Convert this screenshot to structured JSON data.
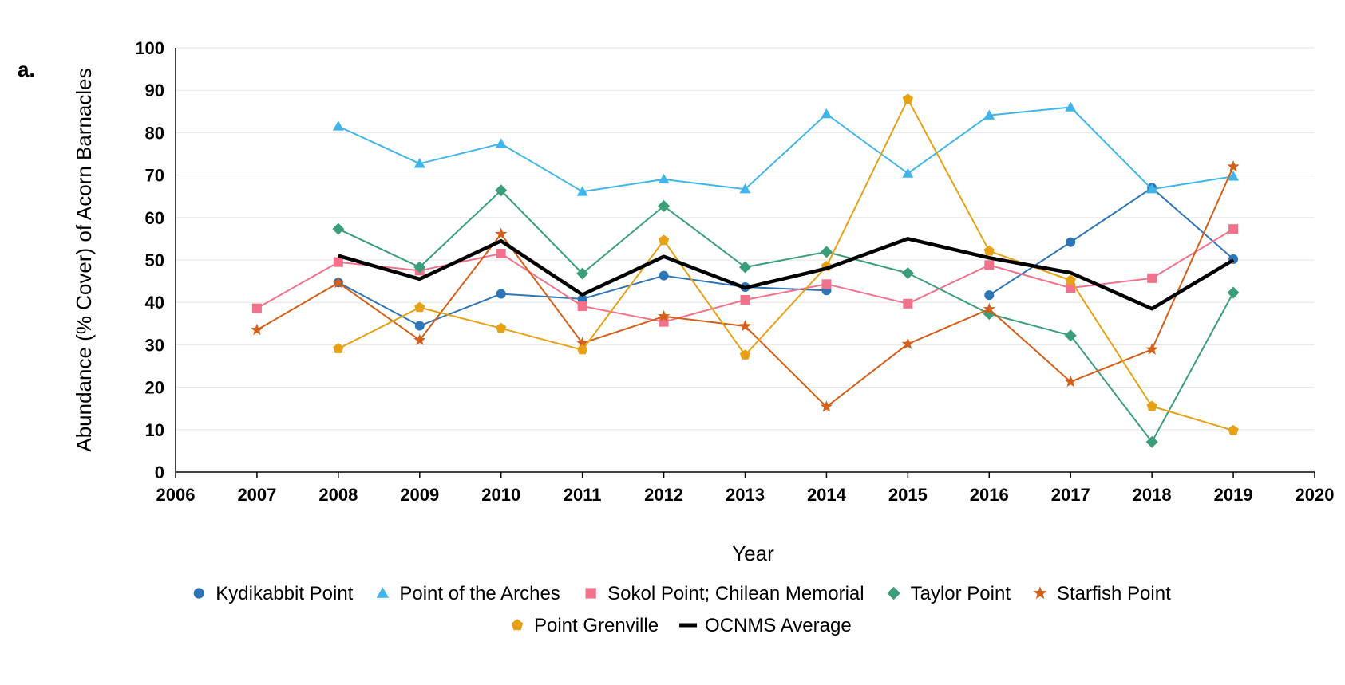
{
  "panel_label": "a.",
  "chart_data": {
    "type": "line",
    "xlabel": "Year",
    "ylabel": "Abundance (% Cover) of Acorn Barnacles",
    "xlim": [
      2006,
      2020
    ],
    "ylim": [
      0,
      100
    ],
    "x_ticks": [
      2006,
      2007,
      2008,
      2009,
      2010,
      2011,
      2012,
      2013,
      2014,
      2015,
      2016,
      2017,
      2018,
      2019,
      2020
    ],
    "y_ticks": [
      0,
      10,
      20,
      30,
      40,
      50,
      60,
      70,
      80,
      90,
      100
    ],
    "grid": "horizontal",
    "legend_position": "bottom",
    "series": [
      {
        "name": "Kydikabbit Point",
        "color": "#2e75b6",
        "marker": "circle",
        "line_width": "thin",
        "points": [
          [
            2008,
            44.7
          ],
          [
            2009,
            34.5
          ],
          [
            2010,
            42
          ],
          [
            2011,
            40.8
          ],
          [
            2012,
            46.3
          ],
          [
            2013,
            43.6
          ],
          [
            2014,
            42.8
          ],
          [
            2015,
            null
          ],
          [
            2016,
            41.7
          ],
          [
            2017,
            54.2
          ],
          [
            2018,
            67
          ],
          [
            2019,
            50.2
          ]
        ]
      },
      {
        "name": "Point of the Arches",
        "color": "#3fb5ea",
        "marker": "triangle",
        "line_width": "thin",
        "points": [
          [
            2008,
            81.5
          ],
          [
            2009,
            72.7
          ],
          [
            2010,
            77.4
          ],
          [
            2011,
            66.1
          ],
          [
            2012,
            69
          ],
          [
            2013,
            66.7
          ],
          [
            2014,
            84.4
          ],
          [
            2015,
            70.4
          ],
          [
            2016,
            84.1
          ],
          [
            2017,
            86
          ],
          [
            2018,
            66.7
          ],
          [
            2019,
            69.7
          ]
        ]
      },
      {
        "name": "Sokol Point; Chilean Memorial",
        "color": "#f2728c",
        "marker": "square",
        "line_width": "thin",
        "points": [
          [
            2007,
            38.6
          ],
          [
            2008,
            49.5
          ],
          [
            2009,
            47.5
          ],
          [
            2010,
            51.5
          ],
          [
            2011,
            39.1
          ],
          [
            2012,
            35.4
          ],
          [
            2013,
            40.6
          ],
          [
            2014,
            44.3
          ],
          [
            2015,
            39.7
          ],
          [
            2016,
            48.8
          ],
          [
            2017,
            43.4
          ],
          [
            2018,
            45.7
          ],
          [
            2019,
            57.3
          ]
        ]
      },
      {
        "name": "Taylor Point",
        "color": "#3a9e78",
        "marker": "diamond",
        "line_width": "thin",
        "points": [
          [
            2008,
            57.3
          ],
          [
            2009,
            48.3
          ],
          [
            2010,
            66.4
          ],
          [
            2011,
            46.8
          ],
          [
            2012,
            62.7
          ],
          [
            2013,
            48.3
          ],
          [
            2014,
            51.9
          ],
          [
            2015,
            46.9
          ],
          [
            2016,
            37.3
          ],
          [
            2017,
            32.2
          ],
          [
            2018,
            7.1
          ],
          [
            2019,
            42.3
          ]
        ]
      },
      {
        "name": "Starfish Point",
        "color": "#d25f1a",
        "marker": "star",
        "line_width": "thin",
        "points": [
          [
            2007,
            33.5
          ],
          [
            2008,
            44.6
          ],
          [
            2009,
            31.1
          ],
          [
            2010,
            56.1
          ],
          [
            2011,
            30.4
          ],
          [
            2012,
            36.7
          ],
          [
            2013,
            34.4
          ],
          [
            2014,
            15.4
          ],
          [
            2015,
            30.2
          ],
          [
            2016,
            38.4
          ],
          [
            2017,
            21.3
          ],
          [
            2018,
            28.9
          ],
          [
            2019,
            72
          ]
        ]
      },
      {
        "name": "Point Grenville",
        "color": "#e6a214",
        "marker": "pentagon",
        "line_width": "thin",
        "points": [
          [
            2008,
            29.1
          ],
          [
            2009,
            38.8
          ],
          [
            2010,
            33.9
          ],
          [
            2011,
            28.8
          ],
          [
            2012,
            54.6
          ],
          [
            2013,
            27.6
          ],
          [
            2014,
            48.5
          ],
          [
            2015,
            87.9
          ],
          [
            2016,
            52.1
          ],
          [
            2017,
            45.2
          ],
          [
            2018,
            15.5
          ],
          [
            2019,
            9.8
          ]
        ]
      },
      {
        "name": "OCNMS Average",
        "color": "#000000",
        "marker": "none",
        "line_width": "thick",
        "points": [
          [
            2008,
            51
          ],
          [
            2009,
            45.5
          ],
          [
            2010,
            54.5
          ],
          [
            2011,
            41.8
          ],
          [
            2012,
            50.8
          ],
          [
            2013,
            43.4
          ],
          [
            2014,
            48
          ],
          [
            2015,
            55
          ],
          [
            2016,
            50.5
          ],
          [
            2017,
            47
          ],
          [
            2018,
            38.5
          ],
          [
            2019,
            50
          ]
        ]
      }
    ]
  }
}
